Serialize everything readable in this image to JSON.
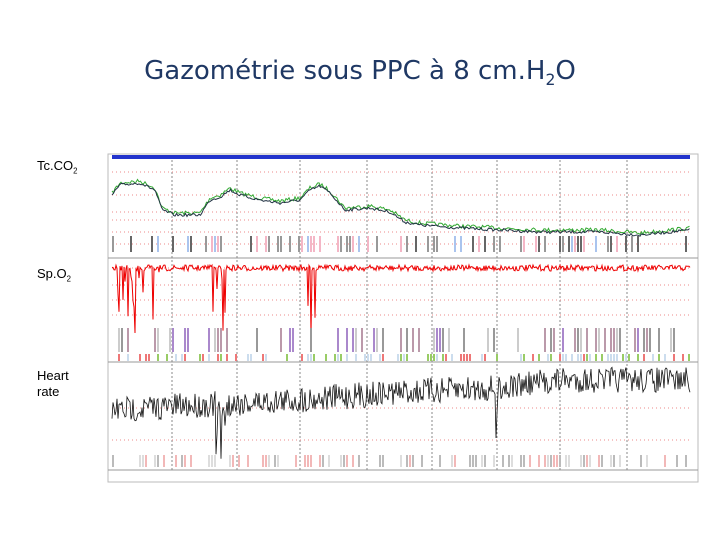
{
  "header": {
    "title": {
      "text": "Gazométrie sous PPC à 8 cm.H",
      "subscript": "2",
      "suffix": "O"
    }
  },
  "panels": [
    {
      "label": {
        "text": "Tc.CO",
        "subscript": "2"
      }
    },
    {
      "label": {
        "text": "Sp.O",
        "subscript": "2"
      }
    },
    {
      "label": {
        "text": "Heart rate"
      }
    }
  ]
}
